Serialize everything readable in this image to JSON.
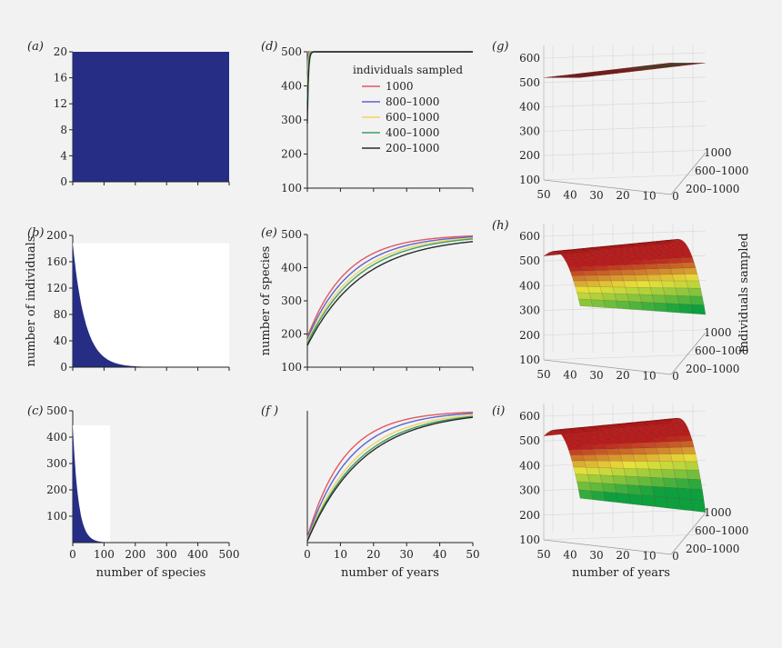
{
  "colors": {
    "background": "#f2f2f2",
    "bar_fill": "#262d85",
    "series": [
      "#e0595f",
      "#5b63cf",
      "#f0d460",
      "#3aa064",
      "#2a2a2a"
    ],
    "surface_low": "#0e9f3e",
    "surface_mid": "#e8e23a",
    "surface_high": "#b81d1d"
  },
  "chart_data": [
    {
      "panel": "a",
      "panel_label": "(a)",
      "type": "bar",
      "x_range": [
        0,
        500
      ],
      "ylim": [
        0,
        20
      ],
      "yticks": [
        0,
        4,
        8,
        12,
        16,
        20
      ],
      "xticks": [
        0,
        100,
        200,
        300,
        400,
        500
      ],
      "show_xtick_labels": false,
      "distribution": "uniform",
      "n_species": 500,
      "value": 20,
      "xlabel": "",
      "ylabel": ""
    },
    {
      "panel": "b",
      "panel_label": "(b)",
      "type": "bar",
      "x_range": [
        0,
        500
      ],
      "ylim": [
        0,
        200
      ],
      "yticks": [
        0,
        40,
        80,
        120,
        160,
        200
      ],
      "xticks": [
        0,
        100,
        200,
        300,
        400,
        500
      ],
      "show_xtick_labels": false,
      "distribution": "exponential_decay",
      "start_value": 188,
      "decay_scale": 40,
      "n_species": 500,
      "xlabel": "",
      "ylabel": "number of individuals"
    },
    {
      "panel": "c",
      "panel_label": "(c)",
      "type": "bar",
      "x_range": [
        0,
        500
      ],
      "ylim": [
        0,
        500
      ],
      "yticks": [
        100,
        200,
        300,
        400,
        500
      ],
      "xticks": [
        0,
        100,
        200,
        300,
        400,
        500
      ],
      "show_xtick_labels": true,
      "distribution": "exponential_decay",
      "start_value": 445,
      "decay_scale": 18,
      "n_species": 120,
      "xlabel": "number of species",
      "ylabel": ""
    },
    {
      "panel": "d",
      "panel_label": "(d)",
      "type": "line",
      "xlim": [
        0,
        50
      ],
      "ylim": [
        100,
        500
      ],
      "yticks": [
        100,
        200,
        300,
        400,
        500
      ],
      "xticks": [
        0,
        10,
        20,
        30,
        40,
        50
      ],
      "show_xtick_labels": false,
      "show_ytick_labels": true,
      "legend_title": "individuals sampled",
      "legend_position": "top-right",
      "series": [
        {
          "name": "1000",
          "start": 500,
          "plateau": 500,
          "rate": 10
        },
        {
          "name": "800–1000",
          "start": 440,
          "plateau": 500,
          "rate": 6
        },
        {
          "name": "600–1000",
          "start": 400,
          "plateau": 500,
          "rate": 5
        },
        {
          "name": "400–1000",
          "start": 350,
          "plateau": 500,
          "rate": 4
        },
        {
          "name": "200–1000",
          "start": 290,
          "plateau": 500,
          "rate": 3.2
        }
      ],
      "xlabel": "",
      "ylabel": ""
    },
    {
      "panel": "e",
      "panel_label": "(e)",
      "type": "line",
      "xlim": [
        0,
        50
      ],
      "ylim": [
        100,
        500
      ],
      "yticks": [
        100,
        200,
        300,
        400,
        500
      ],
      "xticks": [
        0,
        10,
        20,
        30,
        40,
        50
      ],
      "show_xtick_labels": false,
      "show_ytick_labels": true,
      "series": [
        {
          "start": 190,
          "plateau": 500,
          "rate": 0.085
        },
        {
          "start": 185,
          "plateau": 500,
          "rate": 0.075
        },
        {
          "start": 178,
          "plateau": 500,
          "rate": 0.068
        },
        {
          "start": 172,
          "plateau": 500,
          "rate": 0.064
        },
        {
          "start": 165,
          "plateau": 495,
          "rate": 0.06
        }
      ],
      "xlabel": "",
      "ylabel": "number of species"
    },
    {
      "panel": "f",
      "panel_label": "(f )",
      "type": "line",
      "xlim": [
        0,
        50
      ],
      "ylim": [
        0,
        500
      ],
      "xticks": [
        0,
        10,
        20,
        30,
        40,
        50
      ],
      "show_xtick_labels": true,
      "show_ytick_labels": false,
      "series": [
        {
          "start": 20,
          "plateau": 500,
          "rate": 0.09
        },
        {
          "start": 15,
          "plateau": 500,
          "rate": 0.078
        },
        {
          "start": 10,
          "plateau": 500,
          "rate": 0.068
        },
        {
          "start": 8,
          "plateau": 500,
          "rate": 0.063
        },
        {
          "start": 5,
          "plateau": 500,
          "rate": 0.06
        }
      ],
      "xlabel": "number of years",
      "ylabel": ""
    },
    {
      "panel": "g",
      "panel_label": "(g)",
      "type": "surface3d",
      "zticks": [
        100,
        200,
        300,
        400,
        500,
        600
      ],
      "xticks": [
        50,
        40,
        30,
        20,
        10,
        0
      ],
      "depth_ticks": [
        "1000",
        "600–1000",
        "200–1000"
      ],
      "surface": {
        "base": 520,
        "curvature": 0
      },
      "xlabel": "",
      "ylabel": "",
      "zlabel": ""
    },
    {
      "panel": "h",
      "panel_label": "(h)",
      "type": "surface3d",
      "zticks": [
        100,
        200,
        300,
        400,
        500,
        600
      ],
      "xticks": [
        50,
        40,
        30,
        20,
        10,
        0
      ],
      "depth_ticks": [
        "1000",
        "600–1000",
        "200–1000"
      ],
      "surface": {
        "base": 520,
        "curvature": 0.8
      },
      "xlabel": "",
      "ylabel": "individuals sampled",
      "zlabel": ""
    },
    {
      "panel": "i",
      "panel_label": "(i)",
      "type": "surface3d",
      "zticks": [
        100,
        200,
        300,
        400,
        500,
        600
      ],
      "xticks": [
        50,
        40,
        30,
        20,
        10,
        0
      ],
      "depth_ticks": [
        "1000",
        "600–1000",
        "200–1000"
      ],
      "surface": {
        "base": 520,
        "curvature": 1.0
      },
      "xlabel": "number of years",
      "ylabel": "",
      "zlabel": ""
    }
  ]
}
